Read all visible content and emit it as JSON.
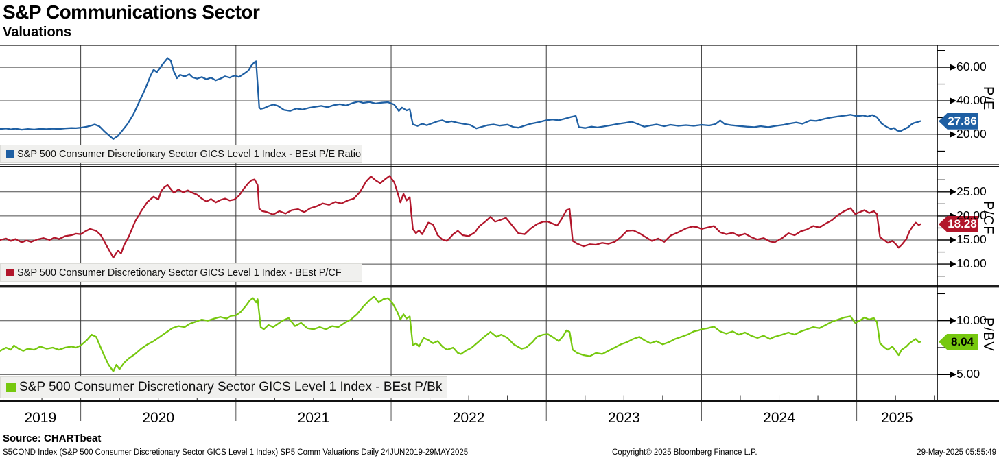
{
  "header": {
    "title": "S&P Communications Sector",
    "subtitle": "Valuations"
  },
  "footer": {
    "source": "Source: CHARTbeat",
    "description": "S5COND Index (S&P 500 Consumer Discretionary Sector GICS Level 1 Index) SP5 Comm Valuations Daily 24JUN2019-29MAY2025",
    "copyright": "Copyright© 2025 Bloomberg Finance L.P.",
    "timestamp": "29-May-2025 05:55:49"
  },
  "x_axis": {
    "start": 2019.48,
    "end": 2025.41,
    "range_label": "24JUN2019-29MAY2025",
    "year_labels": [
      "2019",
      "2020",
      "2021",
      "2022",
      "2023",
      "2024",
      "2025"
    ]
  },
  "colors": {
    "pe_blue": "#1e5fa3",
    "pcf_red": "#b2162b",
    "pbv_green": "#76c80f",
    "gridline": "#4c4c4c",
    "year_gridline": "#3d3d3d",
    "frame": "#141414",
    "legend_bg": "#f0f0ee"
  },
  "chart_data": [
    {
      "type": "line",
      "axis_title": "P/E",
      "legend": "S&P 500 Consumer Discretionary Sector GICS Level 1 Index - BEst P/E Ratio",
      "color": "#1e5fa3",
      "tag_text_color": "#ffffff",
      "last_value": 27.86,
      "last_label": "27.86",
      "ylim": [
        1.6,
        73.1
      ],
      "gridline_values": [
        60,
        40,
        20
      ],
      "tick_labels": [
        "60.00",
        "40.00",
        "20.00"
      ],
      "minor_tick_values": [
        70,
        50,
        30,
        10
      ],
      "x": [
        2019.48,
        2019.52,
        2019.55,
        2019.58,
        2019.62,
        2019.66,
        2019.7,
        2019.74,
        2019.78,
        2019.82,
        2019.86,
        2019.9,
        2019.94,
        2019.97,
        2020.0,
        2020.04,
        2020.07,
        2020.09,
        2020.12,
        2020.15,
        2020.18,
        2020.21,
        2020.24,
        2020.27,
        2020.3,
        2020.34,
        2020.38,
        2020.42,
        2020.45,
        2020.47,
        2020.49,
        2020.51,
        2020.53,
        2020.56,
        2020.58,
        2020.6,
        2020.62,
        2020.64,
        2020.67,
        2020.7,
        2020.72,
        2020.75,
        2020.78,
        2020.81,
        2020.84,
        2020.87,
        2020.9,
        2020.93,
        2020.96,
        2020.99,
        2021.02,
        2021.05,
        2021.08,
        2021.1,
        2021.12,
        2021.13,
        2021.15,
        2021.16,
        2021.18,
        2021.21,
        2021.24,
        2021.27,
        2021.31,
        2021.35,
        2021.39,
        2021.43,
        2021.47,
        2021.51,
        2021.55,
        2021.59,
        2021.63,
        2021.67,
        2021.71,
        2021.75,
        2021.79,
        2021.82,
        2021.86,
        2021.9,
        2021.94,
        2021.98,
        2022.02,
        2022.05,
        2022.07,
        2022.1,
        2022.12,
        2022.14,
        2022.17,
        2022.2,
        2022.23,
        2022.27,
        2022.3,
        2022.33,
        2022.36,
        2022.39,
        2022.43,
        2022.47,
        2022.51,
        2022.55,
        2022.58,
        2022.62,
        2022.66,
        2022.7,
        2022.75,
        2022.79,
        2022.82,
        2022.86,
        2022.9,
        2022.95,
        2023.0,
        2023.04,
        2023.08,
        2023.12,
        2023.16,
        2023.19,
        2023.21,
        2023.25,
        2023.29,
        2023.33,
        2023.38,
        2023.42,
        2023.46,
        2023.51,
        2023.55,
        2023.59,
        2023.63,
        2023.67,
        2023.71,
        2023.76,
        2023.8,
        2023.85,
        2023.9,
        2023.95,
        2024.0,
        2024.05,
        2024.09,
        2024.12,
        2024.15,
        2024.19,
        2024.24,
        2024.29,
        2024.34,
        2024.38,
        2024.43,
        2024.48,
        2024.53,
        2024.57,
        2024.61,
        2024.65,
        2024.7,
        2024.74,
        2024.79,
        2024.83,
        2024.88,
        2024.92,
        2024.96,
        2025.0,
        2025.04,
        2025.07,
        2025.1,
        2025.13,
        2025.16,
        2025.19,
        2025.22,
        2025.24,
        2025.26,
        2025.28,
        2025.3,
        2025.33,
        2025.35,
        2025.37,
        2025.39,
        2025.41
      ],
      "values": [
        23.2,
        23.5,
        23.0,
        23.4,
        22.8,
        23.2,
        22.9,
        23.3,
        23.1,
        23.4,
        23.2,
        23.6,
        23.8,
        23.7,
        24.0,
        24.6,
        25.3,
        25.9,
        24.8,
        22.0,
        19.5,
        17.2,
        19.0,
        22.5,
        26.0,
        32.0,
        40.0,
        48.0,
        55.0,
        58.5,
        57.0,
        59.5,
        62.0,
        65.5,
        64.0,
        57.5,
        53.5,
        55.5,
        54.5,
        55.8,
        54.0,
        53.2,
        54.2,
        52.8,
        53.8,
        52.2,
        53.2,
        54.6,
        53.8,
        55.0,
        54.2,
        56.0,
        58.0,
        61.0,
        63.0,
        63.5,
        36.0,
        35.2,
        35.6,
        36.8,
        37.8,
        37.0,
        34.6,
        34.0,
        35.4,
        34.8,
        35.8,
        36.4,
        37.0,
        36.2,
        37.4,
        38.0,
        37.2,
        38.6,
        39.6,
        38.8,
        39.3,
        38.4,
        38.9,
        39.2,
        37.8,
        33.9,
        36.0,
        34.3,
        35.0,
        26.0,
        25.0,
        26.3,
        25.4,
        26.8,
        27.8,
        28.4,
        27.2,
        27.8,
        26.9,
        26.2,
        25.6,
        23.6,
        24.4,
        25.4,
        25.9,
        25.2,
        25.8,
        24.3,
        24.0,
        25.2,
        26.3,
        27.2,
        28.4,
        28.9,
        28.4,
        29.4,
        30.4,
        31.0,
        24.3,
        23.8,
        24.6,
        24.1,
        24.9,
        25.5,
        26.2,
        26.9,
        27.5,
        26.2,
        24.6,
        25.3,
        25.9,
        24.9,
        25.7,
        25.1,
        25.5,
        25.1,
        25.7,
        25.3,
        26.1,
        28.3,
        26.1,
        25.5,
        25.0,
        24.6,
        24.3,
        24.9,
        24.3,
        25.1,
        25.7,
        26.5,
        27.1,
        26.3,
        28.3,
        28.0,
        29.2,
        30.0,
        30.7,
        31.2,
        31.7,
        30.9,
        31.3,
        30.6,
        31.5,
        30.3,
        26.5,
        24.6,
        23.2,
        23.8,
        22.3,
        21.8,
        22.8,
        24.2,
        25.8,
        26.8,
        27.3,
        27.86
      ]
    },
    {
      "type": "line",
      "axis_title": "P/CF",
      "legend": "S&P 500 Consumer Discretionary Sector GICS Level 1 Index - BEst P/CF",
      "color": "#b2162b",
      "tag_text_color": "#ffffff",
      "last_value": 18.28,
      "last_label": "18.28",
      "ylim": [
        5.6,
        30.1
      ],
      "gridline_values": [
        25,
        20,
        15,
        10
      ],
      "tick_labels": [
        "25.00",
        "20.00",
        "15.00",
        "10.00"
      ],
      "minor_tick_values": [
        27.5,
        22.5,
        17.5,
        12.5,
        7.5
      ],
      "x": [
        2019.48,
        2019.52,
        2019.55,
        2019.58,
        2019.62,
        2019.65,
        2019.68,
        2019.72,
        2019.76,
        2019.8,
        2019.83,
        2019.86,
        2019.9,
        2019.94,
        2019.97,
        2020.0,
        2020.03,
        2020.06,
        2020.1,
        2020.13,
        2020.16,
        2020.19,
        2020.21,
        2020.24,
        2020.26,
        2020.28,
        2020.31,
        2020.35,
        2020.39,
        2020.43,
        2020.47,
        2020.5,
        2020.52,
        2020.54,
        2020.56,
        2020.58,
        2020.6,
        2020.63,
        2020.66,
        2020.69,
        2020.72,
        2020.75,
        2020.78,
        2020.81,
        2020.84,
        2020.87,
        2020.9,
        2020.93,
        2020.96,
        2020.99,
        2021.02,
        2021.05,
        2021.08,
        2021.1,
        2021.12,
        2021.14,
        2021.15,
        2021.17,
        2021.2,
        2021.24,
        2021.28,
        2021.32,
        2021.36,
        2021.4,
        2021.44,
        2021.48,
        2021.52,
        2021.56,
        2021.6,
        2021.64,
        2021.68,
        2021.72,
        2021.76,
        2021.8,
        2021.84,
        2021.87,
        2021.9,
        2021.93,
        2021.96,
        2021.99,
        2022.02,
        2022.04,
        2022.06,
        2022.08,
        2022.1,
        2022.12,
        2022.14,
        2022.16,
        2022.18,
        2022.2,
        2022.24,
        2022.27,
        2022.3,
        2022.33,
        2022.36,
        2022.4,
        2022.43,
        2022.46,
        2022.5,
        2022.54,
        2022.57,
        2022.61,
        2022.64,
        2022.67,
        2022.7,
        2022.74,
        2022.78,
        2022.82,
        2022.86,
        2022.9,
        2022.94,
        2022.98,
        2023.01,
        2023.04,
        2023.07,
        2023.1,
        2023.13,
        2023.15,
        2023.17,
        2023.2,
        2023.24,
        2023.28,
        2023.32,
        2023.36,
        2023.4,
        2023.44,
        2023.48,
        2023.52,
        2023.56,
        2023.6,
        2023.64,
        2023.68,
        2023.72,
        2023.76,
        2023.8,
        2023.85,
        2023.9,
        2023.94,
        2023.97,
        2024.0,
        2024.04,
        2024.08,
        2024.12,
        2024.16,
        2024.2,
        2024.24,
        2024.28,
        2024.32,
        2024.36,
        2024.4,
        2024.44,
        2024.47,
        2024.52,
        2024.56,
        2024.6,
        2024.64,
        2024.68,
        2024.72,
        2024.76,
        2024.8,
        2024.84,
        2024.88,
        2024.92,
        2024.96,
        2024.99,
        2025.02,
        2025.05,
        2025.08,
        2025.11,
        2025.13,
        2025.15,
        2025.18,
        2025.2,
        2025.23,
        2025.25,
        2025.27,
        2025.29,
        2025.32,
        2025.34,
        2025.36,
        2025.38,
        2025.4,
        2025.41
      ],
      "values": [
        15.0,
        15.3,
        14.8,
        15.2,
        14.5,
        14.9,
        14.6,
        15.1,
        15.4,
        15.0,
        15.5,
        15.2,
        15.8,
        16.0,
        16.3,
        16.2,
        16.8,
        17.3,
        16.9,
        16.0,
        14.2,
        12.5,
        11.3,
        12.8,
        12.2,
        14.0,
        15.7,
        18.8,
        21.0,
        22.9,
        24.0,
        23.4,
        25.2,
        26.0,
        26.4,
        25.6,
        24.8,
        25.5,
        24.9,
        25.3,
        24.8,
        24.4,
        23.6,
        23.0,
        23.5,
        22.8,
        23.3,
        23.6,
        23.2,
        23.4,
        24.2,
        25.6,
        26.8,
        27.4,
        27.6,
        26.4,
        21.5,
        21.0,
        20.8,
        20.3,
        21.0,
        20.5,
        21.2,
        21.4,
        20.8,
        21.6,
        22.0,
        22.6,
        22.3,
        22.9,
        22.6,
        23.2,
        23.6,
        25.0,
        27.2,
        28.2,
        27.4,
        26.8,
        27.6,
        28.3,
        27.0,
        25.0,
        22.8,
        24.6,
        23.2,
        23.9,
        17.3,
        16.4,
        17.0,
        16.2,
        18.6,
        18.2,
        16.0,
        15.1,
        14.8,
        16.2,
        16.9,
        16.0,
        15.8,
        16.6,
        17.9,
        18.9,
        19.8,
        18.8,
        19.1,
        19.6,
        18.0,
        16.4,
        16.2,
        17.4,
        18.3,
        18.8,
        18.8,
        18.4,
        18.0,
        19.4,
        21.2,
        21.4,
        14.8,
        14.2,
        13.7,
        14.1,
        14.0,
        14.4,
        14.2,
        14.6,
        15.6,
        16.9,
        17.0,
        16.4,
        15.6,
        14.8,
        15.3,
        14.6,
        15.9,
        16.6,
        17.4,
        17.8,
        17.7,
        17.3,
        17.6,
        17.9,
        16.6,
        16.2,
        16.5,
        15.9,
        16.3,
        15.6,
        15.1,
        15.4,
        14.7,
        14.5,
        15.4,
        16.4,
        16.0,
        16.8,
        17.2,
        17.9,
        17.6,
        18.4,
        19.1,
        20.2,
        21.0,
        21.6,
        20.4,
        20.8,
        21.2,
        20.6,
        21.0,
        20.4,
        15.6,
        14.9,
        14.4,
        14.8,
        14.2,
        13.4,
        14.0,
        15.2,
        16.8,
        17.8,
        18.6,
        18.1,
        18.28
      ]
    },
    {
      "type": "line",
      "axis_title": "P/BV",
      "legend": "S&P 500 Consumer Discretionary Sector GICS Level 1 Index - BEst P/Bk",
      "color": "#76c80f",
      "tag_text_color": "#000000",
      "last_value": 8.04,
      "last_label": "8.04",
      "ylim": [
        2.6,
        13.1
      ],
      "gridline_values": [
        10,
        5
      ],
      "tick_labels": [
        "10.00",
        "5.00"
      ],
      "minor_tick_values": [
        12.5,
        7.5
      ],
      "x": [
        2019.48,
        2019.52,
        2019.55,
        2019.57,
        2019.6,
        2019.63,
        2019.66,
        2019.7,
        2019.74,
        2019.78,
        2019.82,
        2019.86,
        2019.9,
        2019.94,
        2019.97,
        2020.0,
        2020.04,
        2020.07,
        2020.1,
        2020.12,
        2020.15,
        2020.18,
        2020.21,
        2020.23,
        2020.25,
        2020.28,
        2020.31,
        2020.35,
        2020.39,
        2020.43,
        2020.47,
        2020.51,
        2020.55,
        2020.59,
        2020.63,
        2020.67,
        2020.7,
        2020.74,
        2020.78,
        2020.82,
        2020.86,
        2020.9,
        2020.94,
        2020.97,
        2021.0,
        2021.03,
        2021.06,
        2021.09,
        2021.11,
        2021.13,
        2021.14,
        2021.16,
        2021.18,
        2021.21,
        2021.24,
        2021.27,
        2021.3,
        2021.34,
        2021.38,
        2021.42,
        2021.46,
        2021.5,
        2021.54,
        2021.58,
        2021.62,
        2021.66,
        2021.7,
        2021.74,
        2021.78,
        2021.82,
        2021.86,
        2021.89,
        2021.92,
        2021.95,
        2021.98,
        2022.01,
        2022.04,
        2022.06,
        2022.08,
        2022.1,
        2022.12,
        2022.14,
        2022.16,
        2022.18,
        2022.21,
        2022.24,
        2022.27,
        2022.3,
        2022.33,
        2022.36,
        2022.4,
        2022.43,
        2022.45,
        2022.48,
        2022.52,
        2022.56,
        2022.6,
        2022.64,
        2022.68,
        2022.71,
        2022.75,
        2022.79,
        2022.84,
        2022.87,
        2022.91,
        2022.94,
        2022.98,
        2023.01,
        2023.05,
        2023.08,
        2023.11,
        2023.13,
        2023.15,
        2023.17,
        2023.2,
        2023.24,
        2023.28,
        2023.32,
        2023.36,
        2023.4,
        2023.44,
        2023.48,
        2023.52,
        2023.56,
        2023.6,
        2023.63,
        2023.67,
        2023.71,
        2023.75,
        2023.79,
        2023.83,
        2023.87,
        2023.91,
        2023.95,
        2023.98,
        2024.0,
        2024.04,
        2024.08,
        2024.12,
        2024.16,
        2024.2,
        2024.24,
        2024.28,
        2024.32,
        2024.36,
        2024.4,
        2024.44,
        2024.47,
        2024.52,
        2024.56,
        2024.6,
        2024.64,
        2024.68,
        2024.72,
        2024.76,
        2024.8,
        2024.84,
        2024.88,
        2024.92,
        2024.96,
        2024.99,
        2025.02,
        2025.05,
        2025.08,
        2025.11,
        2025.13,
        2025.15,
        2025.18,
        2025.2,
        2025.23,
        2025.25,
        2025.27,
        2025.29,
        2025.32,
        2025.34,
        2025.36,
        2025.38,
        2025.4,
        2025.41
      ],
      "values": [
        7.2,
        7.5,
        7.3,
        7.7,
        7.4,
        7.2,
        7.4,
        7.3,
        7.6,
        7.4,
        7.5,
        7.3,
        7.5,
        7.6,
        7.5,
        7.7,
        8.2,
        8.7,
        8.5,
        7.8,
        6.8,
        5.9,
        5.3,
        5.9,
        5.5,
        6.1,
        6.5,
        6.9,
        7.4,
        7.8,
        8.1,
        8.5,
        8.9,
        9.3,
        9.5,
        9.4,
        9.7,
        9.9,
        10.1,
        10.0,
        10.2,
        10.35,
        10.2,
        10.45,
        10.5,
        10.8,
        11.3,
        11.9,
        12.1,
        11.7,
        12.0,
        9.4,
        9.2,
        9.6,
        9.4,
        9.7,
        10.0,
        10.25,
        9.5,
        9.8,
        9.3,
        9.2,
        9.4,
        9.2,
        9.5,
        9.4,
        9.8,
        10.1,
        10.6,
        11.3,
        11.9,
        12.25,
        11.7,
        12.0,
        12.1,
        11.6,
        10.8,
        10.1,
        10.6,
        10.2,
        10.4,
        7.7,
        7.9,
        7.6,
        8.4,
        8.2,
        7.9,
        8.1,
        7.6,
        7.3,
        7.5,
        7.0,
        6.9,
        7.2,
        7.5,
        8.0,
        8.5,
        8.96,
        8.5,
        8.7,
        8.4,
        7.8,
        7.4,
        7.5,
        8.0,
        8.5,
        8.7,
        8.75,
        8.4,
        8.1,
        8.6,
        9.1,
        8.95,
        7.3,
        7.0,
        6.8,
        6.7,
        7.0,
        6.9,
        7.2,
        7.5,
        7.8,
        8.0,
        8.3,
        8.5,
        8.2,
        7.9,
        8.1,
        7.8,
        8.0,
        8.3,
        8.5,
        8.7,
        9.0,
        9.1,
        9.2,
        9.3,
        9.45,
        9.0,
        8.8,
        9.0,
        8.7,
        8.9,
        8.6,
        8.4,
        8.6,
        8.3,
        8.5,
        8.7,
        8.9,
        8.7,
        9.0,
        9.2,
        9.4,
        9.3,
        9.6,
        9.9,
        10.1,
        10.3,
        10.4,
        9.8,
        10.0,
        10.3,
        10.1,
        10.25,
        9.9,
        7.9,
        7.5,
        7.3,
        7.6,
        7.2,
        6.8,
        7.3,
        7.6,
        7.9,
        8.1,
        8.3,
        8.0,
        8.04
      ]
    }
  ]
}
